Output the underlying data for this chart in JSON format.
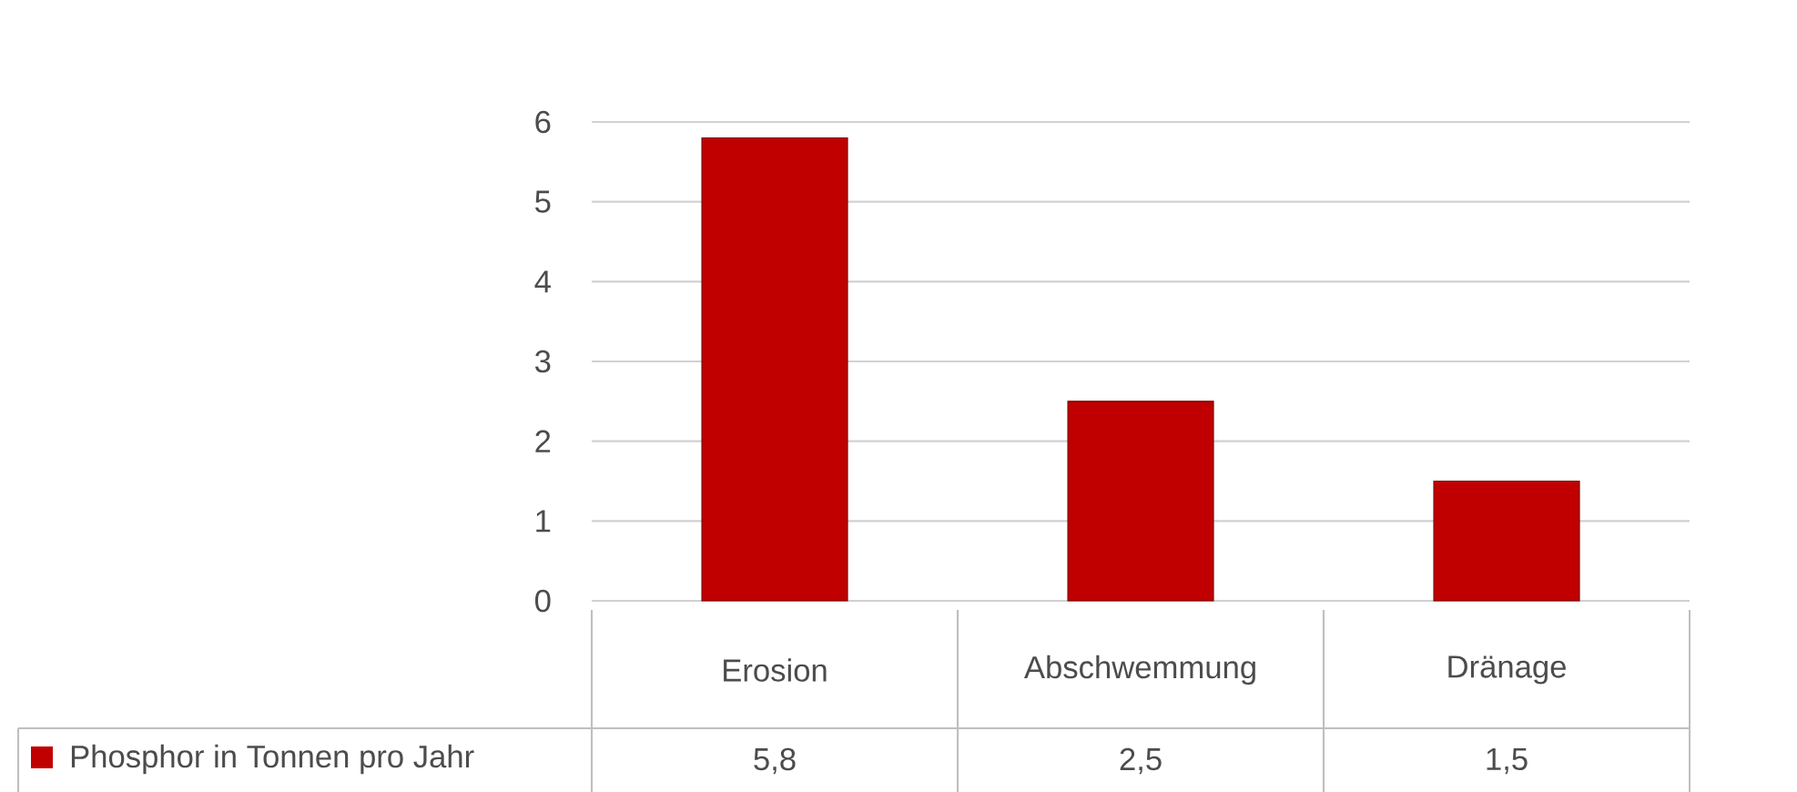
{
  "chart_data": {
    "type": "bar",
    "categories": [
      "Erosion",
      "Abschwemmung",
      "Dränage"
    ],
    "series": [
      {
        "name": "Phosphor in Tonnen pro Jahr",
        "color": "#c00000",
        "values": [
          5.8,
          2.5,
          1.5
        ],
        "value_labels": [
          "5,8",
          "2,5",
          "1,5"
        ]
      }
    ],
    "ylim": [
      0,
      6
    ],
    "yticks": [
      0,
      1,
      2,
      3,
      4,
      5,
      6
    ],
    "grid": "y",
    "legend": "bottom"
  }
}
